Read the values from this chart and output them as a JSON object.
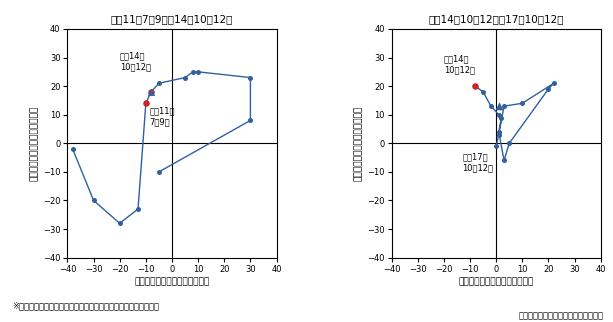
{
  "title1": "平成11年7－9月〜14年10－12月",
  "title2": "平成14年10－12月〜17年10－12月",
  "xlabel": "情報通信関連在庫前年比（％）",
  "ylabel": "情報通信関連出荷前年比（％）",
  "xlim": [
    -40,
    40
  ],
  "ylim": [
    -40,
    40
  ],
  "xticks": [
    -40,
    -30,
    -20,
    -10,
    0,
    10,
    20,
    30,
    40
  ],
  "yticks": [
    -40,
    -30,
    -20,
    -10,
    0,
    10,
    20,
    30,
    40
  ],
  "chart1_x": [
    -38,
    -30,
    -20,
    -13,
    -10,
    -8,
    -5,
    5,
    8,
    10,
    30,
    30,
    -5
  ],
  "chart1_y": [
    -2,
    -20,
    -28,
    -23,
    14,
    18,
    21,
    23,
    25,
    25,
    23,
    8,
    -10
  ],
  "chart1_start_x": -10,
  "chart1_start_y": 14,
  "chart1_start_label": "平成11年\n7－9月",
  "chart1_end_x": -8,
  "chart1_end_y": 18,
  "chart1_end_label": "平成14年\n10－12月",
  "chart2_x": [
    -8,
    -5,
    -2,
    1,
    2,
    1,
    3,
    5,
    20,
    22,
    10,
    3,
    1,
    0
  ],
  "chart2_y": [
    20,
    18,
    13,
    10,
    9,
    4,
    -6,
    0,
    19,
    21,
    14,
    13,
    3,
    -1
  ],
  "chart2_start_x": -8,
  "chart2_start_y": 20,
  "chart2_start_label": "平成14年\n10－12月",
  "chart2_end_x": 0,
  "chart2_end_y": -1,
  "chart2_end_label": "平成17年\n10－12月",
  "chart2_triangle_x": 1,
  "chart2_triangle_y": 13,
  "note1": "※　鉱工業出荷指数、在庫指数の原係数を集計し、前年比を計算",
  "note2": "経済産業省「鉱工業指数」により作成",
  "line_color": "#3060a0",
  "dot_color": "#3060a0",
  "red_dot_color": "#cc2222",
  "triangle_color": "#3060a0"
}
